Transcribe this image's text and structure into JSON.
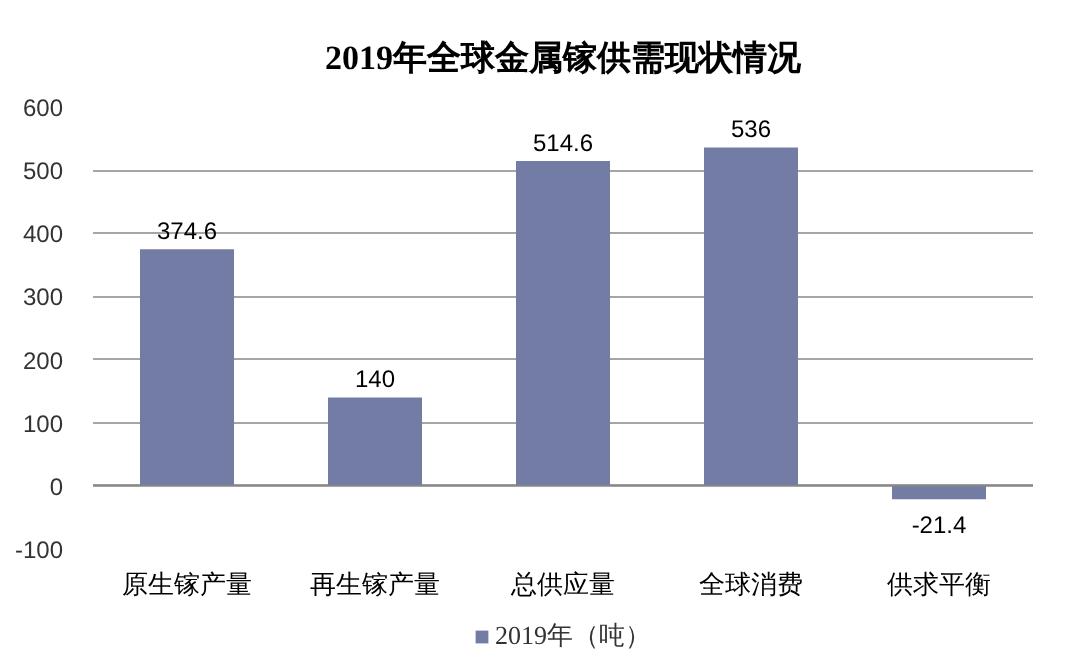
{
  "chart_data": {
    "type": "bar",
    "title": "2019年全球金属镓供需现状情况",
    "categories": [
      "原生镓产量",
      "再生镓产量",
      "总供应量",
      "全球消费",
      "供求平衡"
    ],
    "series": [
      {
        "name": "2019年（吨）",
        "color": "#727ca4",
        "values": [
          374.6,
          140,
          514.6,
          536,
          -21.4
        ]
      }
    ],
    "ylim": [
      -100,
      600
    ],
    "yticks": [
      -100,
      0,
      100,
      200,
      300,
      400,
      500,
      600
    ],
    "grid": "y",
    "legend": "bottom",
    "data_labels": true
  }
}
